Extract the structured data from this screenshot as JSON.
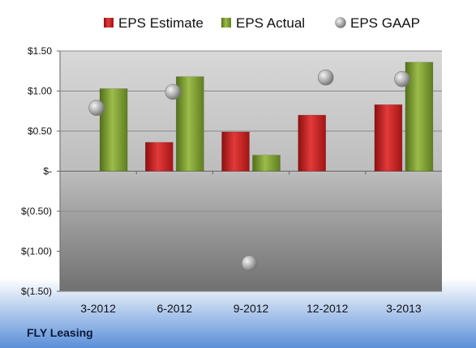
{
  "chart_data": {
    "type": "bar",
    "categories": [
      "3-2012",
      "6-2012",
      "9-2012",
      "12-2012",
      "3-2013"
    ],
    "series": [
      {
        "name": "EPS Estimate",
        "kind": "bar",
        "color": "#cc1f1f",
        "values": [
          null,
          0.36,
          0.49,
          0.7,
          0.83
        ]
      },
      {
        "name": "EPS Actual",
        "kind": "bar",
        "color": "#7a9a2e",
        "values": [
          1.03,
          1.18,
          0.2,
          null,
          1.36
        ]
      },
      {
        "name": "EPS GAAP",
        "kind": "marker",
        "color": "#a8a8a8",
        "values": [
          0.79,
          0.99,
          -1.15,
          1.17,
          1.15
        ]
      }
    ],
    "yticks": [
      "$1.50",
      "$1.00",
      "$0.50",
      "$-",
      "$(0.50)",
      "$(1.00)",
      "$(1.50)"
    ],
    "ylim": [
      -1.5,
      1.5
    ],
    "grid": true,
    "legend_position": "top",
    "company": "FLY Leasing"
  }
}
